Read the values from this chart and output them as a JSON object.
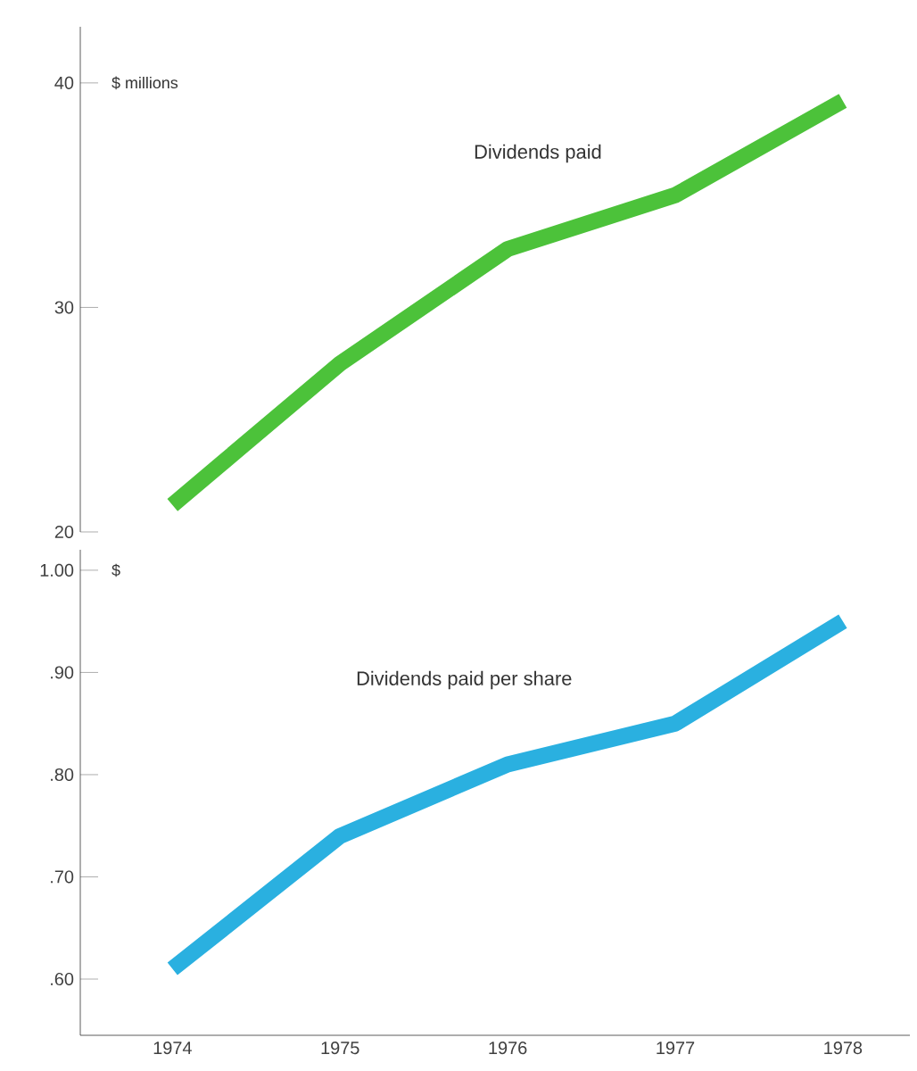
{
  "chart_data": [
    {
      "type": "line",
      "ylabel": "$ millions",
      "categories": [
        "1974",
        "1975",
        "1976",
        "1977",
        "1978"
      ],
      "ylim": [
        20,
        42.5
      ],
      "yticks": [
        20,
        30,
        40
      ],
      "tick_labels": "y",
      "marker": "none",
      "line_style": "solid",
      "grid": false,
      "series": [
        {
          "name": "Dividends paid",
          "color": "#4cc23a",
          "values": [
            21.2,
            27.5,
            32.6,
            35.0,
            39.2
          ]
        }
      ]
    },
    {
      "type": "line",
      "ylabel": "$",
      "categories": [
        "1974",
        "1975",
        "1976",
        "1977",
        "1978"
      ],
      "ylim": [
        0.545,
        1.02
      ],
      "yticks": [
        {
          "value": 0.6,
          "label": ".60"
        },
        {
          "value": 0.7,
          "label": ".70"
        },
        {
          "value": 0.8,
          "label": ".80"
        },
        {
          "value": 0.9,
          "label": ".90"
        },
        {
          "value": 1.0,
          "label": "1.00"
        }
      ],
      "marker": "none",
      "line_style": "solid",
      "grid": false,
      "series": [
        {
          "name": "Dividends paid per share",
          "color": "#2ab0e0",
          "values": [
            0.61,
            0.74,
            0.81,
            0.85,
            0.95
          ]
        }
      ]
    }
  ]
}
